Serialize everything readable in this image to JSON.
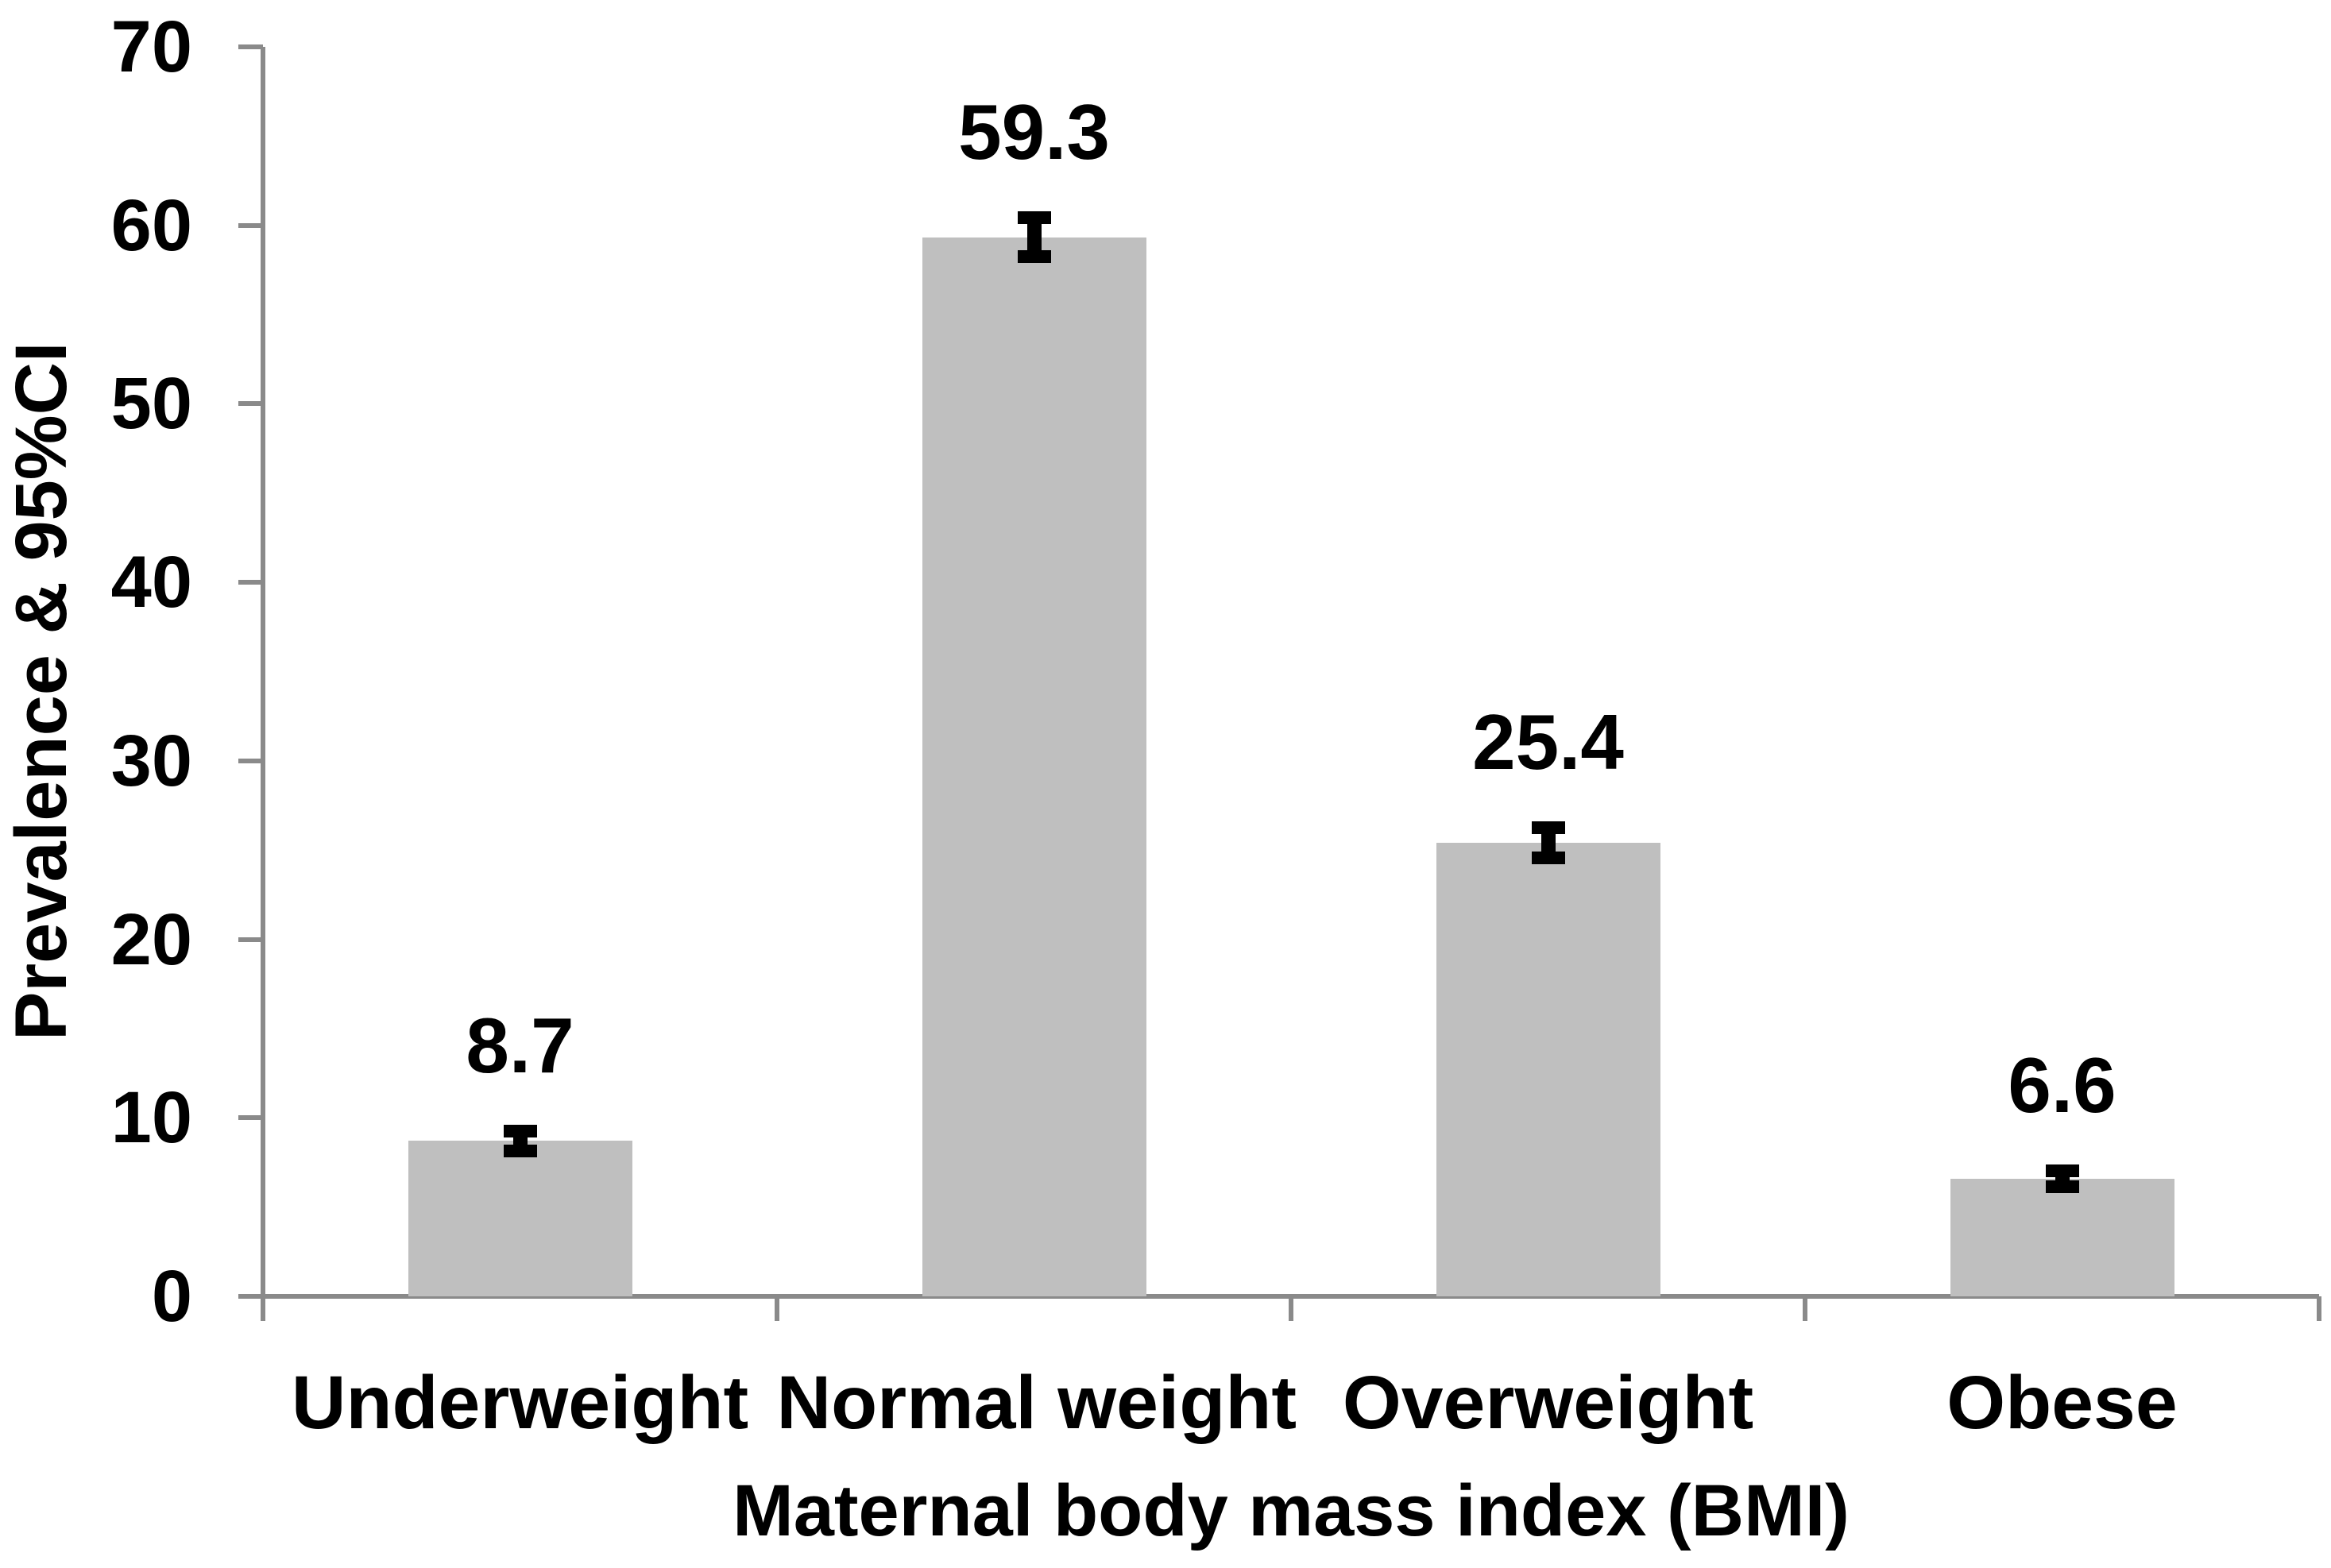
{
  "chart_data": {
    "type": "bar",
    "title": "",
    "xlabel": "Maternal body mass index (BMI)",
    "ylabel": "Prevalence & 95%CI",
    "categories": [
      "Underweight",
      "Normal weight",
      "Overweight",
      "Obese"
    ],
    "values": [
      8.7,
      59.3,
      25.4,
      6.6
    ],
    "value_labels": [
      "8.7",
      "59.3",
      "25.4",
      "6.6"
    ],
    "error_bars_95ci": [
      {
        "low": 7.8,
        "high": 9.6
      },
      {
        "low": 57.9,
        "high": 60.8
      },
      {
        "low": 24.2,
        "high": 26.6
      },
      {
        "low": 5.8,
        "high": 7.4
      }
    ],
    "ylim": [
      0,
      70
    ],
    "yticks": [
      0,
      10,
      20,
      30,
      40,
      50,
      60,
      70
    ],
    "grid": false,
    "legend": null,
    "bar_color": "#bfbfbf",
    "axis_color": "#8a8a8a",
    "error_bar_color": "#000000",
    "text_color": "#000000"
  }
}
